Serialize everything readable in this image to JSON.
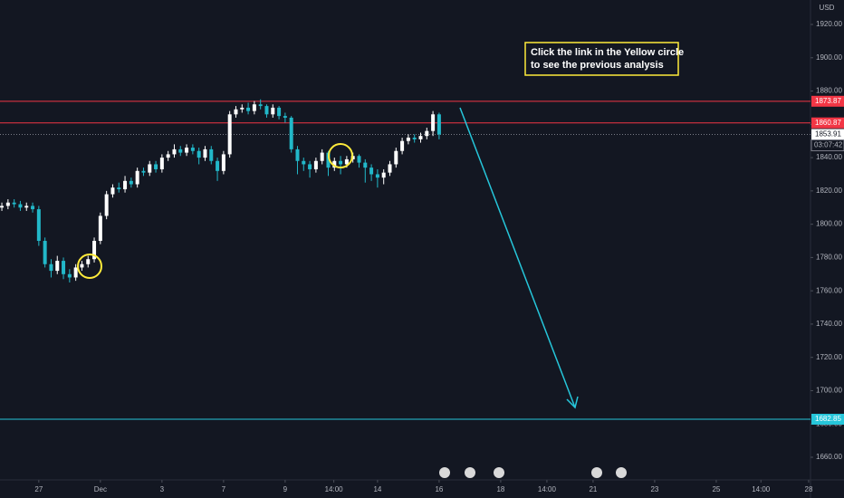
{
  "chart_data": {
    "type": "candlestick",
    "currency": "USD",
    "x": [
      -1.2,
      -1,
      -0.8,
      -0.6,
      -0.4,
      -0.2,
      0,
      0.2,
      0.4,
      0.6,
      0.8,
      1,
      1.2,
      1.4,
      1.6,
      1.8,
      2,
      2.2,
      2.4,
      2.6,
      2.8,
      3,
      3.2,
      3.4,
      3.6,
      3.8,
      4,
      4.2,
      4.4,
      4.6,
      4.8,
      5,
      5.2,
      5.4,
      5.6,
      5.8,
      6,
      6.2,
      6.4,
      6.6,
      6.8,
      7,
      7.2,
      7.4,
      7.6,
      7.8,
      8,
      8.2,
      8.4,
      8.6,
      8.8,
      9,
      9.2,
      9.4,
      9.6,
      9.8,
      10,
      10.2,
      10.4,
      10.6,
      10.8,
      11,
      11.2,
      11.4,
      11.6,
      11.8,
      12,
      12.2,
      12.4,
      12.6,
      12.8,
      13
    ],
    "open": [
      1810,
      1811,
      1813,
      1812,
      1810,
      1811,
      1809,
      1790,
      1776,
      1772,
      1778,
      1770,
      1768,
      1774,
      1776,
      1779,
      1790,
      1805,
      1818,
      1822,
      1821,
      1826,
      1824,
      1832,
      1831,
      1836,
      1833,
      1840,
      1842,
      1845,
      1843,
      1846,
      1844,
      1840,
      1845,
      1838,
      1832,
      1842,
      1866,
      1869,
      1870,
      1868,
      1872,
      1871,
      1866,
      1870,
      1865,
      1864,
      1845,
      1838,
      1836,
      1833,
      1838,
      1843,
      1834,
      1838,
      1836,
      1839,
      1841,
      1837,
      1834,
      1830,
      1828,
      1831,
      1836,
      1844,
      1850,
      1852,
      1851,
      1853,
      1856,
      1866
    ],
    "high": [
      1813,
      1815,
      1815,
      1814,
      1813,
      1813,
      1811,
      1792,
      1779,
      1781,
      1780,
      1773,
      1776,
      1778,
      1781,
      1792,
      1807,
      1820,
      1824,
      1825,
      1829,
      1828,
      1834,
      1834,
      1838,
      1838,
      1842,
      1844,
      1848,
      1847,
      1848,
      1848,
      1846,
      1847,
      1847,
      1840,
      1844,
      1868,
      1871,
      1872,
      1873,
      1874,
      1875,
      1872,
      1872,
      1871,
      1867,
      1865,
      1847,
      1840,
      1838,
      1840,
      1845,
      1844,
      1840,
      1841,
      1841,
      1843,
      1842,
      1839,
      1836,
      1833,
      1833,
      1838,
      1846,
      1852,
      1854,
      1854,
      1855,
      1858,
      1868,
      1867
    ],
    "low": [
      1808,
      1809,
      1810,
      1808,
      1808,
      1807,
      1787,
      1774,
      1768,
      1770,
      1767,
      1765,
      1766,
      1772,
      1774,
      1777,
      1788,
      1803,
      1816,
      1819,
      1819,
      1822,
      1822,
      1829,
      1829,
      1831,
      1831,
      1838,
      1840,
      1841,
      1841,
      1842,
      1836,
      1838,
      1836,
      1826,
      1830,
      1840,
      1864,
      1867,
      1866,
      1866,
      1869,
      1864,
      1864,
      1863,
      1861,
      1843,
      1830,
      1832,
      1828,
      1831,
      1836,
      1829,
      1832,
      1830,
      1834,
      1837,
      1834,
      1825,
      1826,
      1822,
      1824,
      1829,
      1834,
      1842,
      1848,
      1849,
      1849,
      1851,
      1853,
      1851
    ],
    "close": [
      1811,
      1813,
      1812,
      1810,
      1811,
      1809,
      1790,
      1776,
      1772,
      1778,
      1770,
      1768,
      1774,
      1776,
      1779,
      1790,
      1805,
      1818,
      1822,
      1821,
      1826,
      1824,
      1832,
      1831,
      1836,
      1833,
      1840,
      1842,
      1845,
      1843,
      1846,
      1844,
      1840,
      1845,
      1838,
      1832,
      1842,
      1866,
      1869,
      1870,
      1868,
      1872,
      1871,
      1866,
      1870,
      1865,
      1864,
      1845,
      1838,
      1836,
      1833,
      1838,
      1843,
      1834,
      1838,
      1836,
      1839,
      1841,
      1837,
      1834,
      1830,
      1828,
      1831,
      1836,
      1844,
      1850,
      1852,
      1851,
      1853,
      1856,
      1866,
      1853.91
    ],
    "up_color": "#ffffff",
    "down_color": "#22b8c9",
    "xlim": [
      -1.26,
      25.06
    ],
    "xticks": [
      {
        "value": 0,
        "label": "27"
      },
      {
        "value": 2,
        "label": "Dec"
      },
      {
        "value": 4,
        "label": "3"
      },
      {
        "value": 6,
        "label": "7"
      },
      {
        "value": 8,
        "label": "9"
      },
      {
        "value": 9.58,
        "label": "14:00"
      },
      {
        "value": 11,
        "label": "14"
      },
      {
        "value": 13,
        "label": "16"
      },
      {
        "value": 15,
        "label": "18"
      },
      {
        "value": 16.5,
        "label": "14:00"
      },
      {
        "value": 18,
        "label": "21"
      },
      {
        "value": 20,
        "label": "23"
      },
      {
        "value": 22,
        "label": "25"
      },
      {
        "value": 23.45,
        "label": "14:00"
      },
      {
        "value": 25,
        "label": "28"
      }
    ],
    "ylim": [
      1646.4,
      1934.7
    ],
    "yticks": [
      {
        "value": 1660,
        "label": "1660.00"
      },
      {
        "value": 1680,
        "label": "1680.00"
      },
      {
        "value": 1700,
        "label": "1700.00"
      },
      {
        "value": 1720,
        "label": "1720.00"
      },
      {
        "value": 1740,
        "label": "1740.00"
      },
      {
        "value": 1760,
        "label": "1760.00"
      },
      {
        "value": 1780,
        "label": "1780.00"
      },
      {
        "value": 1800,
        "label": "1800.00"
      },
      {
        "value": 1820,
        "label": "1820.00"
      },
      {
        "value": 1840,
        "label": "1840.00"
      },
      {
        "value": 1860,
        "label": "1860.00"
      },
      {
        "value": 1880,
        "label": "1880.00"
      },
      {
        "value": 1900,
        "label": "1900.00"
      },
      {
        "value": 1920,
        "label": "1920.00"
      }
    ],
    "levels": [
      {
        "value": 1873.87,
        "color": "#f23645"
      },
      {
        "value": 1860.87,
        "color": "#f23645"
      },
      {
        "value": 1682.85,
        "color": "#26c6da"
      }
    ],
    "last_price": 1853.91,
    "countdown": "03:07:42",
    "annotation": [
      "Click the link in the Yellow circle",
      "to see the previous analysis"
    ]
  }
}
